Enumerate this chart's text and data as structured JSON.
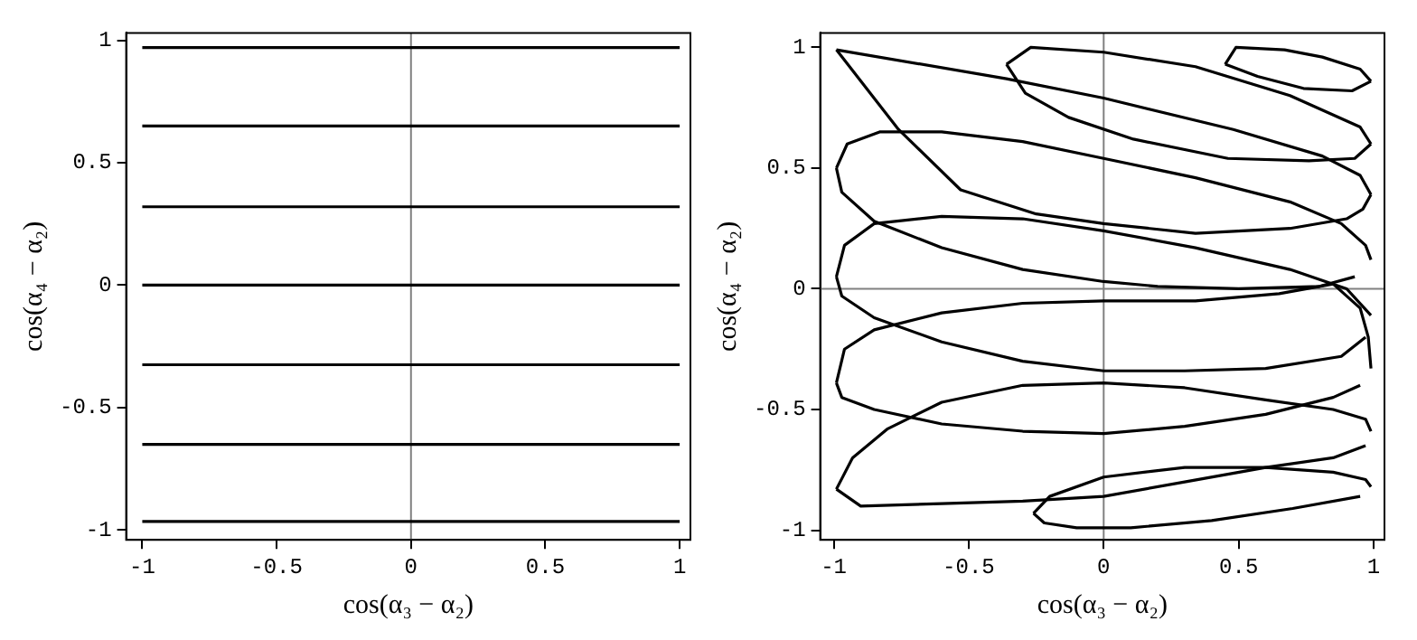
{
  "chart_data": [
    {
      "type": "line",
      "xlabel": "cos(α₃ − α₂)",
      "ylabel": "cos(α₄ − α₂)",
      "xlim": [
        -1.06,
        1.04
      ],
      "ylim": [
        -1.04,
        1.03
      ],
      "xticks": [
        -1,
        -0.5,
        0,
        0.5,
        1
      ],
      "yticks": [
        -1,
        -0.5,
        0,
        0.5,
        1
      ],
      "grid": false,
      "legend": false,
      "marker": "none",
      "line_style": "solid",
      "ref_lines": [
        {
          "axis": "x",
          "value": 0,
          "color": "#808080"
        }
      ],
      "series": [
        {
          "color": "#000000",
          "x": [
            -1,
            1
          ],
          "values": [
            0.97,
            0.97
          ]
        },
        {
          "color": "#000000",
          "x": [
            -1,
            1
          ],
          "values": [
            0.65,
            0.65
          ]
        },
        {
          "color": "#000000",
          "x": [
            -1,
            1
          ],
          "values": [
            0.32,
            0.32
          ]
        },
        {
          "color": "#000000",
          "x": [
            -1,
            1
          ],
          "values": [
            0,
            0
          ]
        },
        {
          "color": "#000000",
          "x": [
            -1,
            1
          ],
          "values": [
            -0.325,
            -0.325
          ]
        },
        {
          "color": "#000000",
          "x": [
            -1,
            1
          ],
          "values": [
            -0.65,
            -0.65
          ]
        },
        {
          "color": "#000000",
          "x": [
            -1,
            1
          ],
          "values": [
            -0.965,
            -0.965
          ]
        }
      ]
    },
    {
      "type": "line",
      "xlabel": "cos(α₃ − α₂)",
      "ylabel": "cos(α₄ − α₂)",
      "xlim": [
        -1.05,
        1.04
      ],
      "ylim": [
        -1.04,
        1.06
      ],
      "xticks": [
        -1,
        -0.5,
        0,
        0.5,
        1
      ],
      "yticks": [
        -1,
        -0.5,
        0,
        0.5,
        1
      ],
      "grid": false,
      "legend": false,
      "marker": "none",
      "line_style": "solid",
      "ref_lines": [
        {
          "axis": "x",
          "value": 0,
          "color": "#808080"
        },
        {
          "axis": "y",
          "value": 0,
          "color": "#808080"
        }
      ],
      "series": [
        {
          "color": "#000000",
          "x": [
            0.45,
            0.49,
            0.67,
            0.81,
            0.95,
            0.99
          ],
          "values": [
            0.93,
            1.0,
            0.99,
            0.96,
            0.91,
            0.86
          ]
        },
        {
          "color": "#000000",
          "x": [
            0.45,
            0.57,
            0.74,
            0.92,
            0.99
          ],
          "values": [
            0.93,
            0.88,
            0.83,
            0.82,
            0.86
          ]
        },
        {
          "color": "#000000",
          "x": [
            -0.36,
            -0.27,
            0,
            0.34,
            0.69,
            0.95,
            0.99
          ],
          "values": [
            0.93,
            1.0,
            0.98,
            0.92,
            0.8,
            0.67,
            0.6
          ]
        },
        {
          "color": "#000000",
          "x": [
            -0.36,
            -0.29,
            -0.13,
            0.11,
            0.46,
            0.76,
            0.93,
            0.99
          ],
          "values": [
            0.93,
            0.81,
            0.71,
            0.62,
            0.54,
            0.53,
            0.54,
            0.6
          ]
        },
        {
          "color": "#000000",
          "x": [
            -0.99,
            -0.36,
            0,
            0.48,
            0.81,
            0.95,
            0.99
          ],
          "values": [
            0.99,
            0.87,
            0.79,
            0.66,
            0.55,
            0.47,
            0.39
          ]
        },
        {
          "color": "#000000",
          "x": [
            -0.99,
            -0.76,
            -0.53,
            -0.25,
            0,
            0.34,
            0.69,
            0.9,
            0.96,
            0.99
          ],
          "values": [
            0.99,
            0.66,
            0.41,
            0.31,
            0.27,
            0.23,
            0.25,
            0.29,
            0.33,
            0.39
          ]
        },
        {
          "color": "#000000",
          "x": [
            -0.99,
            -0.95,
            -0.83,
            -0.6,
            -0.3,
            0,
            0.34,
            0.69,
            0.88,
            0.97,
            0.99
          ],
          "values": [
            0.5,
            0.6,
            0.65,
            0.65,
            0.61,
            0.54,
            0.46,
            0.36,
            0.27,
            0.18,
            0.12
          ]
        },
        {
          "color": "#000000",
          "x": [
            -0.99,
            -0.97,
            -0.85,
            -0.6,
            -0.3,
            0,
            0.2,
            0.5,
            0.8,
            0.93
          ],
          "values": [
            0.5,
            0.4,
            0.28,
            0.17,
            0.08,
            0.03,
            0.01,
            0,
            0.01,
            0.05
          ]
        },
        {
          "color": "#000000",
          "x": [
            -0.99,
            -0.96,
            -0.85,
            -0.6,
            -0.3,
            0,
            0.34,
            0.69,
            0.9,
            0.99
          ],
          "values": [
            0.05,
            0.18,
            0.27,
            0.3,
            0.29,
            0.24,
            0.17,
            0.08,
            0,
            -0.11
          ]
        },
        {
          "color": "#000000",
          "x": [
            -0.99,
            -0.97,
            -0.85,
            -0.6,
            -0.3,
            0,
            0.3,
            0.6,
            0.88,
            0.97
          ],
          "values": [
            0.05,
            -0.03,
            -0.12,
            -0.22,
            -0.3,
            -0.34,
            -0.34,
            -0.33,
            -0.28,
            -0.2
          ]
        },
        {
          "color": "#000000",
          "x": [
            -0.99,
            -0.96,
            -0.85,
            -0.6,
            -0.3,
            0,
            0.34,
            0.65,
            0.85,
            0.95,
            0.98,
            0.99
          ],
          "values": [
            -0.39,
            -0.25,
            -0.17,
            -0.1,
            -0.06,
            -0.05,
            -0.05,
            -0.02,
            0.02,
            -0.08,
            -0.2,
            -0.33
          ]
        },
        {
          "color": "#000000",
          "x": [
            -0.99,
            -0.97,
            -0.85,
            -0.6,
            -0.3,
            0,
            0.3,
            0.6,
            0.85,
            0.95
          ],
          "values": [
            -0.39,
            -0.45,
            -0.5,
            -0.56,
            -0.59,
            -0.6,
            -0.57,
            -0.52,
            -0.45,
            -0.4
          ]
        },
        {
          "color": "#000000",
          "x": [
            -0.99,
            -0.93,
            -0.8,
            -0.6,
            -0.3,
            0,
            0.3,
            0.6,
            0.85,
            0.97,
            0.99
          ],
          "values": [
            -0.83,
            -0.7,
            -0.58,
            -0.47,
            -0.4,
            -0.39,
            -0.41,
            -0.46,
            -0.5,
            -0.54,
            -0.59
          ]
        },
        {
          "color": "#000000",
          "x": [
            -0.99,
            -0.9,
            -0.6,
            -0.3,
            0,
            0.3,
            0.6,
            0.85,
            0.97
          ],
          "values": [
            -0.83,
            -0.9,
            -0.89,
            -0.88,
            -0.86,
            -0.8,
            -0.74,
            -0.7,
            -0.65
          ]
        },
        {
          "color": "#000000",
          "x": [
            -0.26,
            -0.2,
            0,
            0.3,
            0.6,
            0.85,
            0.97,
            0.99
          ],
          "values": [
            -0.93,
            -0.86,
            -0.78,
            -0.74,
            -0.74,
            -0.76,
            -0.79,
            -0.82
          ]
        },
        {
          "color": "#000000",
          "x": [
            -0.26,
            -0.22,
            -0.1,
            0.1,
            0.4,
            0.7,
            0.95
          ],
          "values": [
            -0.93,
            -0.97,
            -0.99,
            -0.99,
            -0.96,
            -0.91,
            -0.86
          ]
        }
      ]
    }
  ]
}
